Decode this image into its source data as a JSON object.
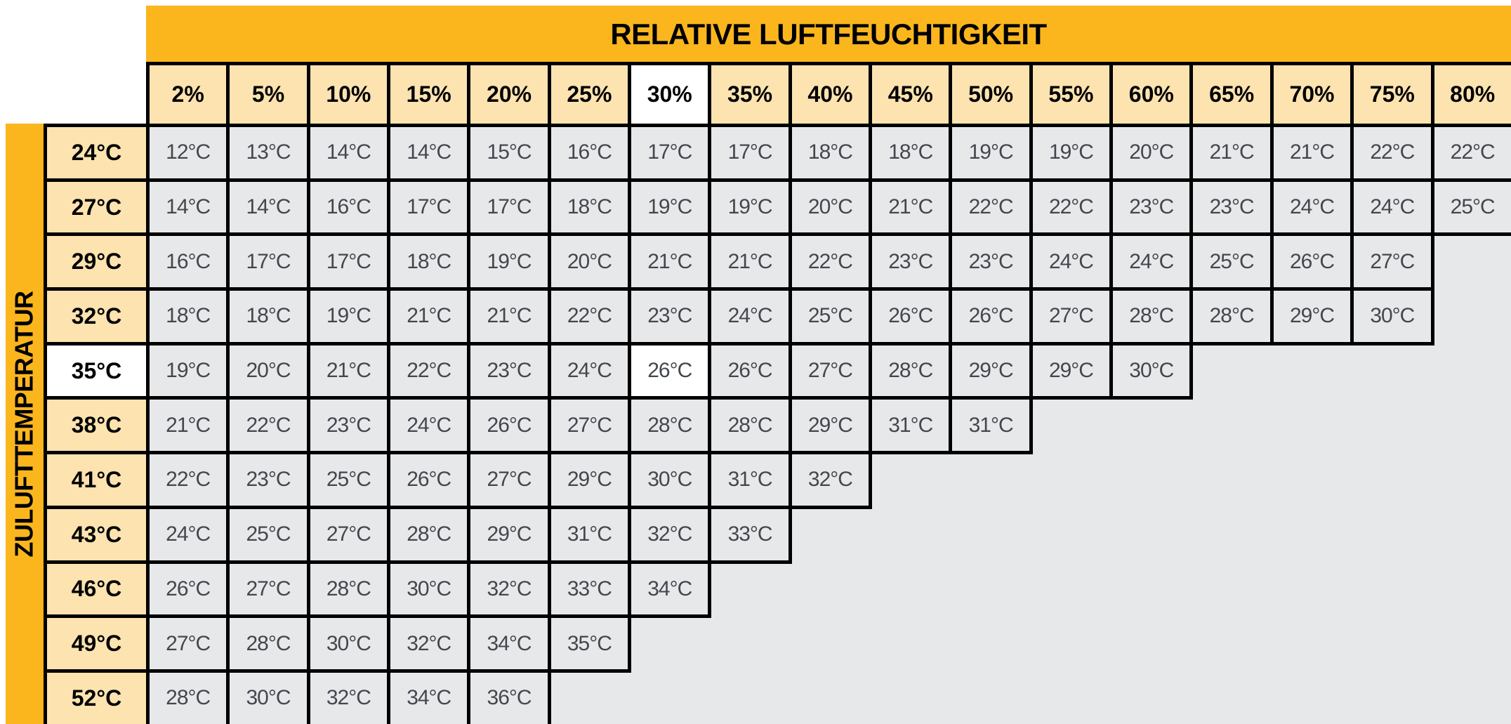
{
  "title": "RELATIVE LUFTFEUCHTIGKEIT",
  "y_axis_label": "ZULUFTTEMPERATUR",
  "chart_data": {
    "type": "table",
    "title": "RELATIVE LUFTFEUCHTIGKEIT",
    "xlabel": "RELATIVE LUFTFEUCHTIGKEIT",
    "ylabel": "ZULUFTTEMPERATUR",
    "columns": [
      "2%",
      "5%",
      "10%",
      "15%",
      "20%",
      "25%",
      "30%",
      "35%",
      "40%",
      "45%",
      "50%",
      "55%",
      "60%",
      "65%",
      "70%",
      "75%",
      "80%"
    ],
    "cell_unit": "°C",
    "rows": [
      {
        "label": "24°C",
        "values": [
          12,
          13,
          14,
          14,
          15,
          16,
          17,
          17,
          18,
          18,
          19,
          19,
          20,
          21,
          21,
          22,
          22
        ]
      },
      {
        "label": "27°C",
        "values": [
          14,
          14,
          16,
          17,
          17,
          18,
          19,
          19,
          20,
          21,
          22,
          22,
          23,
          23,
          24,
          24,
          25
        ]
      },
      {
        "label": "29°C",
        "values": [
          16,
          17,
          17,
          18,
          19,
          20,
          21,
          21,
          22,
          23,
          23,
          24,
          24,
          25,
          26,
          27
        ]
      },
      {
        "label": "32°C",
        "values": [
          18,
          18,
          19,
          21,
          21,
          22,
          23,
          24,
          25,
          26,
          26,
          27,
          28,
          28,
          29,
          30
        ]
      },
      {
        "label": "35°C",
        "values": [
          19,
          20,
          21,
          22,
          23,
          24,
          26,
          26,
          27,
          28,
          29,
          29,
          30
        ]
      },
      {
        "label": "38°C",
        "values": [
          21,
          22,
          23,
          24,
          26,
          27,
          28,
          28,
          29,
          31,
          31
        ]
      },
      {
        "label": "41°C",
        "values": [
          22,
          23,
          25,
          26,
          27,
          29,
          30,
          31,
          32
        ]
      },
      {
        "label": "43°C",
        "values": [
          24,
          25,
          27,
          28,
          29,
          31,
          32,
          33
        ]
      },
      {
        "label": "46°C",
        "values": [
          26,
          27,
          28,
          30,
          32,
          33,
          34
        ]
      },
      {
        "label": "49°C",
        "values": [
          27,
          28,
          30,
          32,
          34,
          35
        ]
      },
      {
        "label": "52°C",
        "values": [
          28,
          30,
          32,
          34,
          36
        ]
      }
    ],
    "highlight": {
      "column": "30%",
      "column_index": 6,
      "row": "35°C",
      "row_index": 4,
      "cell_value": "26°C"
    },
    "legend_position": "none",
    "grid": true
  },
  "colors": {
    "band_orange": "#FBB61E",
    "header_cream": "#FCE3B0",
    "cell_gray": "#E7E8EA",
    "highlight_white": "#FFFFFF",
    "border_black": "#000000"
  }
}
